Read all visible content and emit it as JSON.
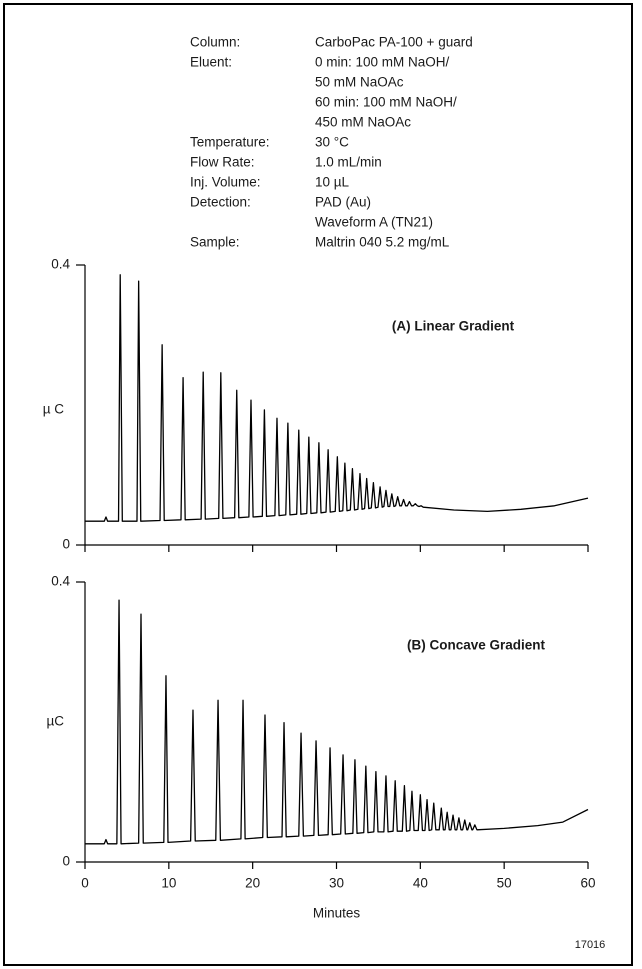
{
  "conditions": [
    {
      "label": "Column:",
      "lines": [
        "CarboPac PA-100 + guard"
      ]
    },
    {
      "label": "Eluent:",
      "lines": [
        "0 min: 100 mM NaOH/",
        "50 mM NaOAc",
        "60 min: 100 mM NaOH/",
        "450 mM NaOAc"
      ]
    },
    {
      "label": "Temperature:",
      "lines": [
        "30 °C"
      ]
    },
    {
      "label": "Flow Rate:",
      "lines": [
        "1.0 mL/min"
      ]
    },
    {
      "label": "Inj. Volume:",
      "lines": [
        "10 µL"
      ]
    },
    {
      "label": "Detection:",
      "lines": [
        "PAD (Au)",
        "Waveform A (TN21)"
      ]
    },
    {
      "label": "Sample:",
      "lines": [
        "Maltrin 040 5.2 mg/mL"
      ]
    }
  ],
  "figure_number": "17016",
  "chart_data": [
    {
      "type": "line",
      "annotation": "(A) Linear Gradient",
      "y_label": "µ C",
      "color": "#000000",
      "xlim": [
        0,
        60
      ],
      "xticks": [
        0,
        10,
        20,
        30,
        40,
        50,
        60
      ],
      "show_xtick_labels": false,
      "ylim": [
        0,
        0.4
      ],
      "yticks": [
        0.4,
        0
      ],
      "x": [
        0,
        2.3,
        2.5,
        2.7,
        4.0,
        4.2,
        4.45,
        6.2,
        6.4,
        6.65,
        8.95,
        9.2,
        9.45,
        11.45,
        11.7,
        11.95,
        13.85,
        14.1,
        14.35,
        15.95,
        16.2,
        16.45,
        17.85,
        18.1,
        18.35,
        19.55,
        19.8,
        20.05,
        21.15,
        21.4,
        21.65,
        22.65,
        22.9,
        23.15,
        23.95,
        24.2,
        24.45,
        25.25,
        25.5,
        25.75,
        26.45,
        26.7,
        26.95,
        27.65,
        27.9,
        28.15,
        28.75,
        29.0,
        29.25,
        29.85,
        30.1,
        30.35,
        30.75,
        31.0,
        31.25,
        31.65,
        31.9,
        32.15,
        32.55,
        32.8,
        33.05,
        33.35,
        33.6,
        33.85,
        34.15,
        34.4,
        34.65,
        34.95,
        35.2,
        35.45,
        35.65,
        35.9,
        36.15,
        36.35,
        36.6,
        36.85,
        37.05,
        37.3,
        37.55,
        37.75,
        38.0,
        38.25,
        38.45,
        38.7,
        38.95,
        39.15,
        39.4,
        39.65,
        39.85,
        40.1,
        40.35,
        44,
        48,
        52,
        56,
        60
      ],
      "values": [
        0.034,
        0.034,
        0.04,
        0.034,
        0.034,
        0.386,
        0.034,
        0.034,
        0.377,
        0.034,
        0.035,
        0.286,
        0.035,
        0.036,
        0.239,
        0.036,
        0.037,
        0.247,
        0.037,
        0.038,
        0.246,
        0.038,
        0.039,
        0.221,
        0.039,
        0.04,
        0.207,
        0.04,
        0.041,
        0.193,
        0.041,
        0.042,
        0.181,
        0.042,
        0.043,
        0.174,
        0.043,
        0.044,
        0.164,
        0.044,
        0.045,
        0.154,
        0.045,
        0.046,
        0.146,
        0.046,
        0.047,
        0.136,
        0.047,
        0.048,
        0.126,
        0.048,
        0.049,
        0.117,
        0.049,
        0.05,
        0.109,
        0.05,
        0.051,
        0.102,
        0.051,
        0.052,
        0.095,
        0.052,
        0.053,
        0.089,
        0.053,
        0.054,
        0.083,
        0.054,
        0.055,
        0.078,
        0.055,
        0.055,
        0.073,
        0.055,
        0.056,
        0.069,
        0.056,
        0.056,
        0.065,
        0.056,
        0.056,
        0.062,
        0.056,
        0.056,
        0.059,
        0.056,
        0.055,
        0.056,
        0.054,
        0.05,
        0.048,
        0.051,
        0.056,
        0.067
      ]
    },
    {
      "type": "line",
      "annotation": "(B) Concave Gradient",
      "y_label": "µC",
      "x_label": "Minutes",
      "color": "#000000",
      "xlim": [
        0,
        60
      ],
      "xticks": [
        0,
        10,
        20,
        30,
        40,
        50,
        60
      ],
      "show_xtick_labels": true,
      "ylim": [
        0,
        0.4
      ],
      "yticks": [
        0.4,
        0
      ],
      "x": [
        0,
        2.3,
        2.5,
        2.7,
        3.8,
        4.06,
        4.3,
        6.4,
        6.68,
        6.95,
        9.4,
        9.66,
        9.9,
        12.6,
        12.88,
        13.15,
        15.6,
        15.87,
        16.15,
        18.6,
        18.85,
        19.1,
        21.2,
        21.47,
        21.75,
        23.5,
        23.74,
        24.0,
        25.5,
        25.77,
        26.05,
        27.3,
        27.56,
        27.85,
        29.0,
        29.23,
        29.5,
        30.5,
        30.78,
        31.05,
        31.95,
        32.2,
        32.45,
        33.25,
        33.5,
        33.75,
        34.45,
        34.7,
        34.95,
        35.65,
        35.9,
        36.15,
        36.75,
        37.0,
        37.25,
        37.85,
        38.1,
        38.35,
        38.75,
        39.0,
        39.25,
        39.75,
        40.0,
        40.25,
        40.55,
        40.8,
        41.05,
        41.35,
        41.6,
        41.85,
        42.25,
        42.5,
        42.75,
        42.95,
        43.2,
        43.45,
        43.65,
        43.9,
        44.15,
        44.35,
        44.6,
        44.85,
        45.05,
        45.3,
        45.55,
        45.65,
        45.9,
        46.15,
        46.25,
        46.5,
        46.75,
        50,
        54,
        57,
        60
      ],
      "values": [
        0.026,
        0.026,
        0.032,
        0.026,
        0.026,
        0.374,
        0.026,
        0.027,
        0.354,
        0.027,
        0.028,
        0.266,
        0.028,
        0.03,
        0.217,
        0.03,
        0.031,
        0.231,
        0.031,
        0.033,
        0.231,
        0.033,
        0.035,
        0.21,
        0.035,
        0.036,
        0.199,
        0.036,
        0.037,
        0.184,
        0.037,
        0.038,
        0.173,
        0.038,
        0.039,
        0.163,
        0.039,
        0.04,
        0.153,
        0.04,
        0.041,
        0.146,
        0.041,
        0.042,
        0.137,
        0.042,
        0.043,
        0.129,
        0.043,
        0.043,
        0.123,
        0.043,
        0.044,
        0.116,
        0.044,
        0.044,
        0.109,
        0.044,
        0.045,
        0.101,
        0.045,
        0.045,
        0.096,
        0.045,
        0.045,
        0.089,
        0.045,
        0.046,
        0.084,
        0.046,
        0.046,
        0.077,
        0.046,
        0.046,
        0.071,
        0.046,
        0.046,
        0.067,
        0.046,
        0.046,
        0.063,
        0.046,
        0.046,
        0.06,
        0.046,
        0.046,
        0.056,
        0.046,
        0.046,
        0.053,
        0.046,
        0.048,
        0.052,
        0.057,
        0.075
      ]
    }
  ]
}
